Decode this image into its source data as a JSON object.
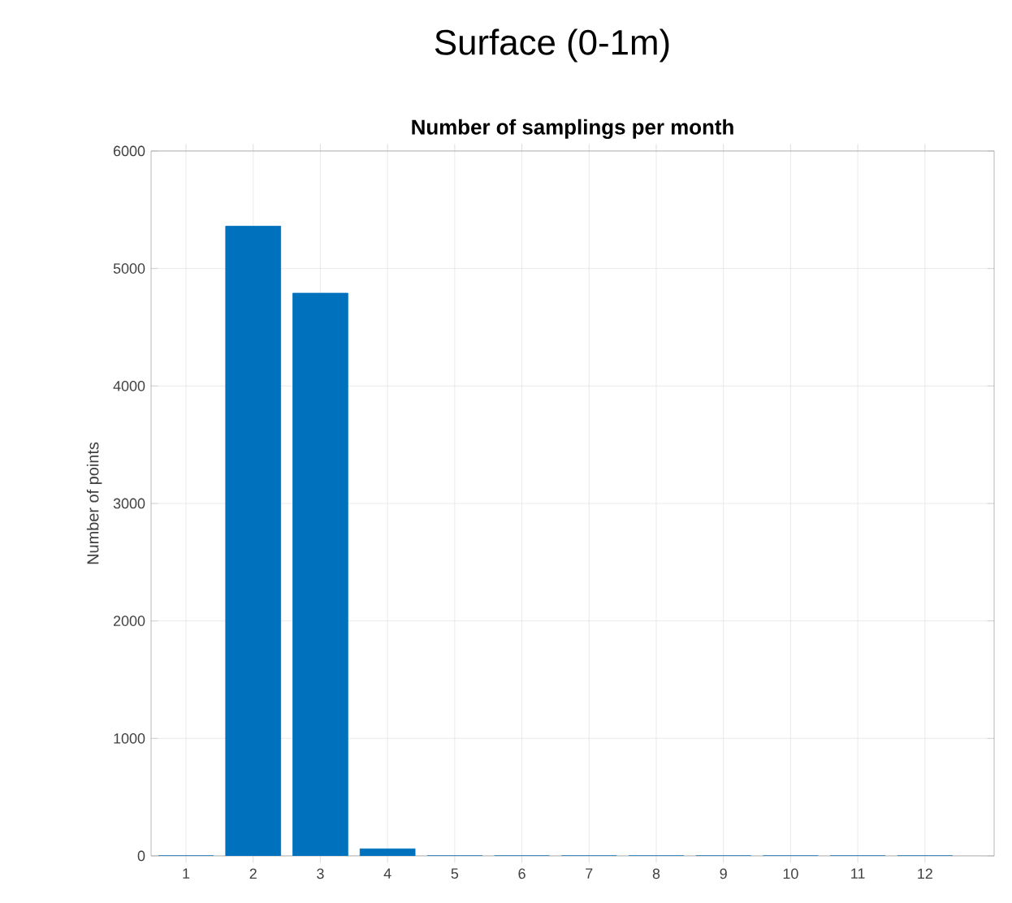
{
  "chart_data": {
    "type": "bar",
    "title": "Surface (0-1m)",
    "subtitle": "Number of samplings per month",
    "ylabel": "Number of points",
    "categories": [
      "1",
      "2",
      "3",
      "4",
      "5",
      "6",
      "7",
      "8",
      "9",
      "10",
      "11",
      "12"
    ],
    "values": [
      0,
      5360,
      4790,
      60,
      0,
      0,
      0,
      0,
      0,
      0,
      0,
      0
    ],
    "color": "#0072bd",
    "ylim": [
      0,
      6000
    ],
    "yticks": [
      0,
      1000,
      2000,
      3000,
      4000,
      5000,
      6000
    ],
    "grid": true
  }
}
